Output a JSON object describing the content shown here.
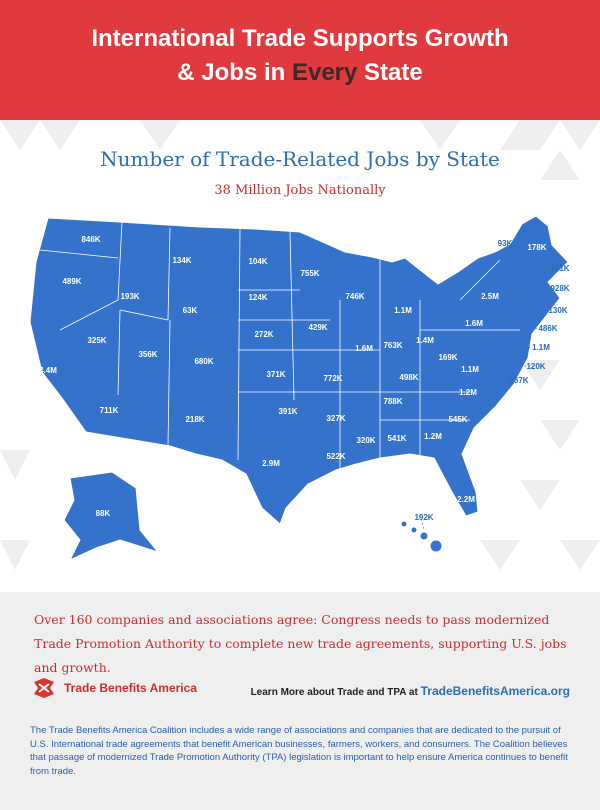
{
  "header": {
    "title_line1": "International Trade Supports Growth",
    "title_line2_start": "& Jobs in ",
    "title_highlight": "Every",
    "title_line2_end": " State"
  },
  "map": {
    "title": "Number of Trade-Related Jobs by State",
    "subtitle": "38 Million Jobs Nationally",
    "labels": [
      "846K",
      "489K",
      "134K",
      "104K",
      "755K",
      "93K",
      "178K",
      "181K",
      "193K",
      "124K",
      "63K",
      "746K",
      "1.1M",
      "2.5M",
      "928K",
      "130K",
      "429K",
      "272K",
      "1.6M",
      "486K",
      "325K",
      "356K",
      "680K",
      "1.6M",
      "763K",
      "1.4M",
      "1.1M",
      "169K",
      "4.4M",
      "371K",
      "772K",
      "498K",
      "1.1M",
      "120K",
      "767K",
      "711K",
      "218K",
      "391K",
      "788K",
      "1.2M",
      "545K",
      "327K",
      "320K",
      "541K",
      "1.2M",
      "522K",
      "2.9M",
      "2.2M",
      "88K",
      "192K"
    ]
  },
  "callout": "Over 160 companies and associations agree: Congress needs to pass modernized Trade Promotion Authority to complete new trade agreements, supporting U.S. jobs and growth.",
  "footer": {
    "logo": "Trade Benefits America",
    "learn_more": "Learn More about Trade and TPA at ",
    "url": "TradeBenefitsAmerica.org",
    "about": "The Trade Benefits America Coalition includes a wide range of associations and companies that are dedicated to the pursuit of U.S. International trade agreements that benefit American businesses, farmers, workers, and consumers. The Coalition believes that passage of modernized Trade Promotion Authority (TPA) legislation is important to help ensure America continues to benefit from trade."
  }
}
